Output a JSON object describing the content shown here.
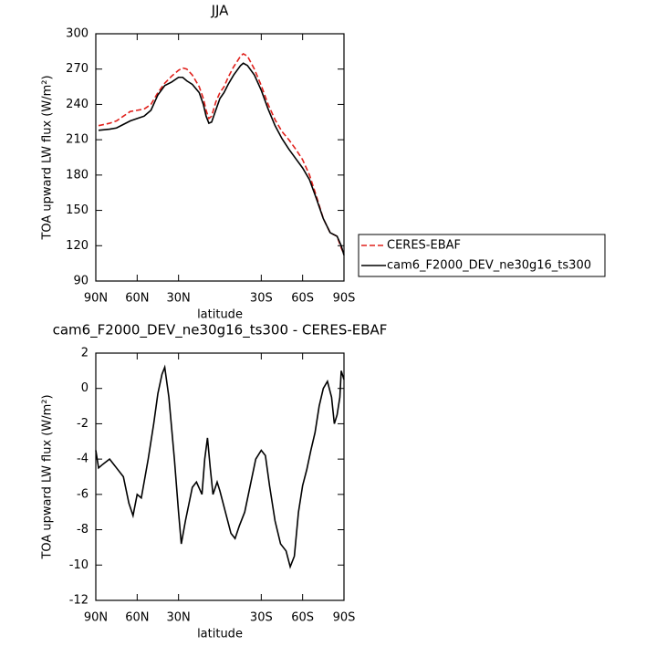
{
  "chart_data": [
    {
      "type": "line",
      "title": "JJA",
      "xlabel": "latitude",
      "ylabel": "TOA upward LW flux (W/m²)",
      "x": [
        88,
        80,
        75,
        70,
        65,
        60,
        55,
        50,
        45,
        40,
        35,
        30,
        27,
        24,
        20,
        15,
        12,
        10,
        8,
        6,
        3,
        0,
        -3,
        -6,
        -10,
        -15,
        -17,
        -20,
        -25,
        -30,
        -35,
        -40,
        -45,
        -50,
        -55,
        -60,
        -65,
        -70,
        -75,
        -80,
        -85,
        -88,
        -90
      ],
      "series": [
        {
          "name": "CERES-EBAF",
          "color": "#e0201b",
          "dashed": true,
          "values": [
            222,
            224,
            226,
            230,
            234,
            235,
            236,
            240,
            250,
            258,
            264,
            269,
            271,
            270,
            265,
            255,
            245,
            235,
            228,
            230,
            242,
            250,
            255,
            263,
            272,
            281,
            283,
            281,
            270,
            256,
            240,
            227,
            217,
            210,
            202,
            193,
            180,
            162,
            143,
            131,
            128,
            118,
            113
          ]
        },
        {
          "name": "cam6_F2000_DEV_ne30g16_ts300",
          "color": "#000000",
          "dashed": false,
          "values": [
            218,
            219,
            220,
            223,
            226,
            228,
            230,
            235,
            248,
            256,
            259,
            263,
            263,
            260,
            257,
            250,
            240,
            230,
            224,
            225,
            235,
            245,
            250,
            257,
            265,
            273,
            275,
            273,
            265,
            252,
            236,
            222,
            211,
            202,
            194,
            186,
            176,
            160,
            143,
            131,
            128,
            120,
            112
          ]
        }
      ],
      "xlim": [
        90,
        -90
      ],
      "xticks": [
        {
          "value": 90,
          "label": "90N"
        },
        {
          "value": 60,
          "label": "60N"
        },
        {
          "value": 30,
          "label": "30N"
        },
        {
          "value": -30,
          "label": "30S"
        },
        {
          "value": -60,
          "label": "60S"
        },
        {
          "value": -90,
          "label": "90S"
        }
      ],
      "ylim": [
        90,
        300
      ],
      "yticks": [
        90,
        120,
        150,
        180,
        210,
        240,
        270,
        300
      ],
      "legend": "right"
    },
    {
      "type": "line",
      "title": "cam6_F2000_DEV_ne30g16_ts300 - CERES-EBAF",
      "xlabel": "latitude",
      "ylabel": "TOA upward LW flux (W/m²)",
      "x": [
        90,
        88,
        85,
        80,
        75,
        70,
        66,
        63,
        60,
        57,
        52,
        48,
        45,
        42,
        40,
        37,
        33,
        30,
        28,
        25,
        20,
        17,
        13,
        11,
        9,
        7,
        5,
        2,
        0,
        -4,
        -8,
        -11,
        -14,
        -18,
        -22,
        -26,
        -30,
        -33,
        -36,
        -40,
        -44,
        -48,
        -51,
        -54,
        -57,
        -60,
        -63,
        -66,
        -69,
        -72,
        -75,
        -78,
        -81,
        -83,
        -85,
        -87,
        -88,
        -90
      ],
      "series": [
        {
          "color": "#000000",
          "dashed": false,
          "values": [
            -3.5,
            -4.5,
            -4.3,
            -4.0,
            -4.5,
            -5.0,
            -6.5,
            -7.2,
            -6.0,
            -6.2,
            -4.0,
            -2.0,
            -0.3,
            0.8,
            1.2,
            -0.5,
            -4.0,
            -7.0,
            -8.8,
            -7.5,
            -5.6,
            -5.3,
            -6.0,
            -4.0,
            -2.8,
            -4.5,
            -6.0,
            -5.3,
            -5.8,
            -7.0,
            -8.2,
            -8.5,
            -7.8,
            -7.0,
            -5.5,
            -4.0,
            -3.5,
            -3.8,
            -5.5,
            -7.5,
            -8.8,
            -9.2,
            -10.1,
            -9.5,
            -7.0,
            -5.5,
            -4.6,
            -3.5,
            -2.5,
            -1.0,
            0.0,
            0.4,
            -0.5,
            -2.0,
            -1.5,
            -0.5,
            1.0,
            0.5
          ]
        }
      ],
      "xlim": [
        90,
        -90
      ],
      "xticks": [
        {
          "value": 90,
          "label": "90N"
        },
        {
          "value": 60,
          "label": "60N"
        },
        {
          "value": 30,
          "label": "30N"
        },
        {
          "value": -30,
          "label": "30S"
        },
        {
          "value": -60,
          "label": "60S"
        },
        {
          "value": -90,
          "label": "90S"
        }
      ],
      "ylim": [
        -12,
        2
      ],
      "yticks": [
        -12,
        -10,
        -8,
        -6,
        -4,
        -2,
        0,
        2
      ]
    }
  ]
}
